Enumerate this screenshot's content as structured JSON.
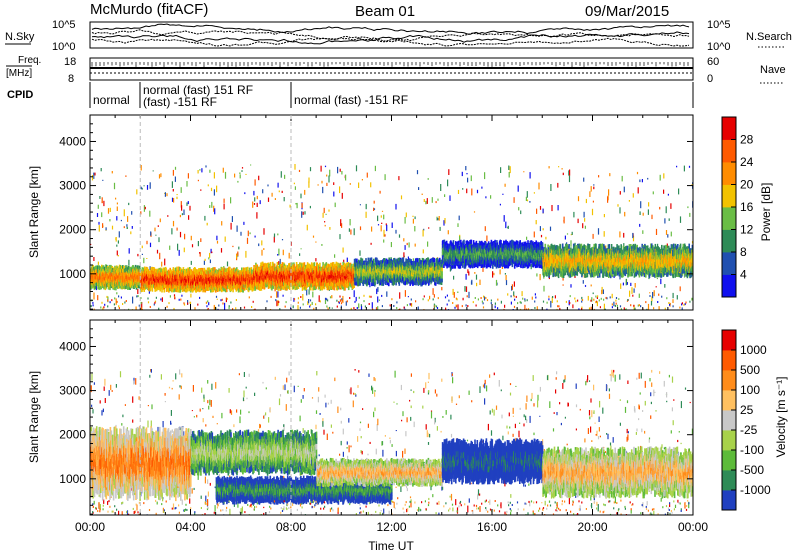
{
  "header": {
    "station": "McMurdo (fitACF)",
    "beam": "Beam 01",
    "date": "09/Mar/2015"
  },
  "status_panels": {
    "nsky_label": "N.Sky",
    "nsky_ticks": [
      "10^5",
      "10^0"
    ],
    "nsearch_label": "N.Search",
    "nsearch_ticks": [
      "10^5",
      "10^0"
    ],
    "freq_label_1": "Freq.",
    "freq_label_2": "[MHz]",
    "freq_ticks": [
      "18",
      "8"
    ],
    "nave_label": "Nave",
    "nave_ticks": [
      "60",
      "0"
    ],
    "cpid_label": "CPID",
    "cpid_segments": [
      "normal",
      "normal (fast) 151 RF",
      "(fast) -151 RF",
      "normal (fast) -151 RF"
    ]
  },
  "chart_data": [
    {
      "type": "heatmap",
      "title": "",
      "xlabel": "",
      "ylabel": "Slant Range [km]",
      "xlim": [
        "00:00",
        "24:00"
      ],
      "ylim": [
        180,
        4600
      ],
      "yticks": [
        "1000",
        "2000",
        "3000",
        "4000"
      ],
      "colorbar_label": "Power [dB]",
      "colorbar_ticks": [
        "4",
        "8",
        "12",
        "16",
        "20",
        "24",
        "28"
      ],
      "colors": [
        "#1010ee",
        "#2050b0",
        "#2e8b57",
        "#6abd45",
        "#f2c200",
        "#ff8c00",
        "#ff5a00",
        "#e60000"
      ],
      "bands": [
        {
          "t0": 0.0,
          "t1": 2.0,
          "r0": 700,
          "r1": 1150,
          "level": 6
        },
        {
          "t0": 2.0,
          "t1": 6.5,
          "r0": 650,
          "r1": 1100,
          "level": 7
        },
        {
          "t0": 6.5,
          "t1": 10.5,
          "r0": 700,
          "r1": 1200,
          "level": 7
        },
        {
          "t0": 10.5,
          "t1": 14.0,
          "r0": 800,
          "r1": 1300,
          "level": 4
        },
        {
          "t0": 14.0,
          "t1": 18.0,
          "r0": 1200,
          "r1": 1700,
          "level": 3
        },
        {
          "t0": 18.0,
          "t1": 24.0,
          "r0": 1000,
          "r1": 1600,
          "level": 5
        }
      ]
    },
    {
      "type": "heatmap",
      "title": "",
      "xlabel": "Time UT",
      "ylabel": "Slant Range [km]",
      "xlim": [
        "00:00",
        "24:00"
      ],
      "ylim": [
        180,
        4600
      ],
      "xticks": [
        "00:00",
        "04:00",
        "08:00",
        "12:00",
        "16:00",
        "20:00",
        "00:00"
      ],
      "yticks": [
        "1000",
        "2000",
        "3000",
        "4000"
      ],
      "colorbar_label": "Velocity [m s⁻¹]",
      "colorbar_ticks": [
        "1000",
        "500",
        "100",
        "25",
        "-25",
        "-100",
        "-500",
        "-1000"
      ],
      "colors": [
        "#2040c0",
        "#2e8b57",
        "#5dbb3a",
        "#a8d24a",
        "#c8c8c8",
        "#ffc060",
        "#ff8c1a",
        "#ff5a00",
        "#e60000"
      ],
      "bands": [
        {
          "t0": 0.0,
          "t1": 4.0,
          "r0": 700,
          "r1": 2000,
          "level": 7
        },
        {
          "t0": 4.0,
          "t1": 9.0,
          "r0": 1200,
          "r1": 2000,
          "level": 4
        },
        {
          "t0": 5.0,
          "t1": 12.0,
          "r0": 500,
          "r1": 1000,
          "level": 2
        },
        {
          "t0": 9.0,
          "t1": 14.0,
          "r0": 900,
          "r1": 1400,
          "level": 6
        },
        {
          "t0": 14.0,
          "t1": 18.0,
          "r0": 1000,
          "r1": 1800,
          "level": 1
        },
        {
          "t0": 18.0,
          "t1": 24.0,
          "r0": 700,
          "r1": 1600,
          "level": 6
        }
      ]
    }
  ]
}
